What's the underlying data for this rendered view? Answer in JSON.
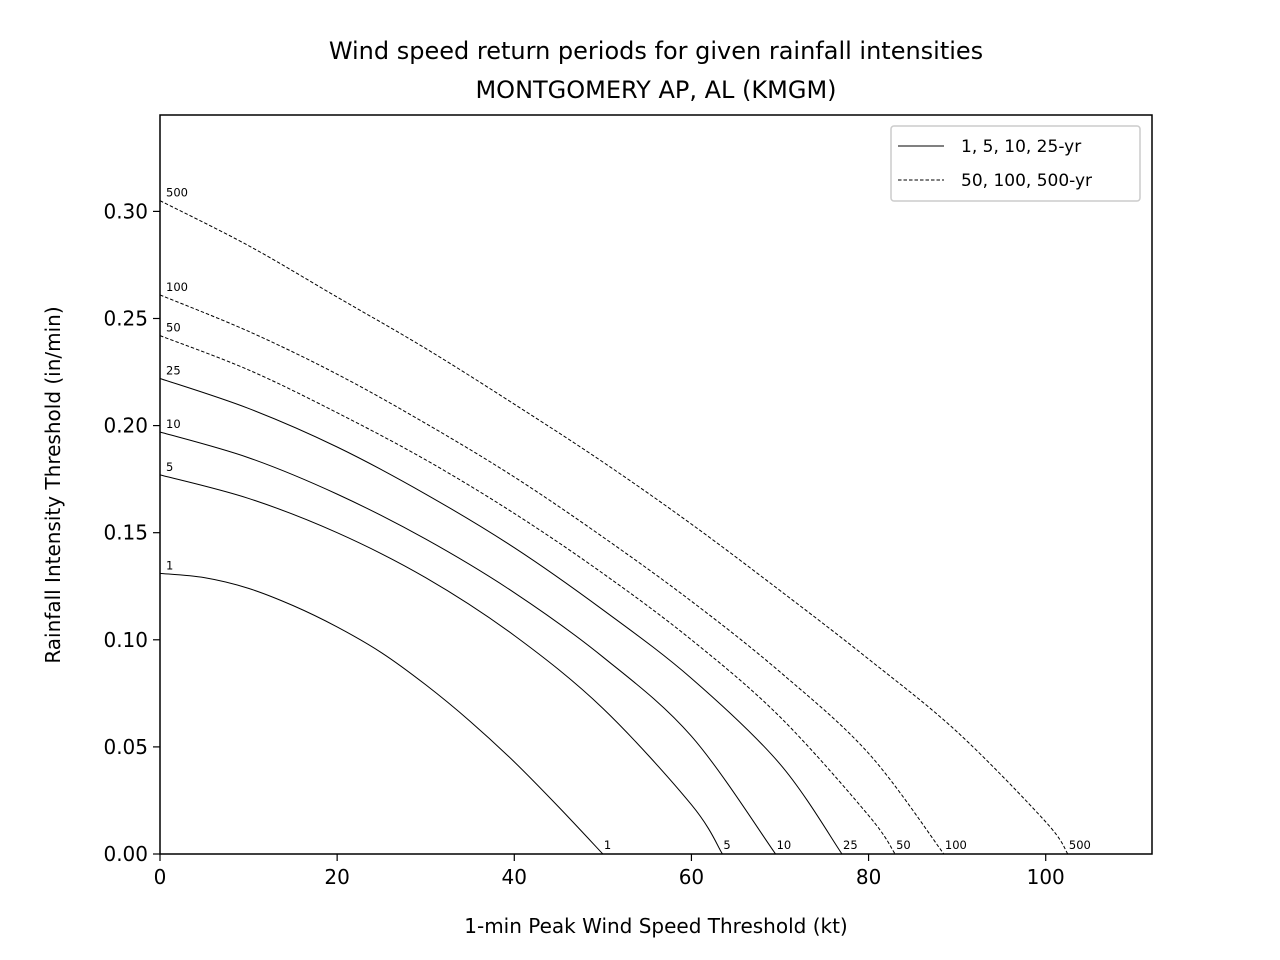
{
  "chart_data": {
    "type": "line",
    "title": "Wind speed return periods for given rainfall intensities",
    "subtitle": "MONTGOMERY AP, AL (KMGM)",
    "xlabel": "1-min Peak Wind Speed Threshold (kt)",
    "ylabel": "Rainfall Intensity Threshold (in/min)",
    "xlim": [
      0,
      112
    ],
    "ylim": [
      0,
      0.345
    ],
    "xticks": [
      0,
      20,
      40,
      60,
      80,
      100
    ],
    "yticks": [
      0.0,
      0.05,
      0.1,
      0.15,
      0.2,
      0.25,
      0.3
    ],
    "xtick_labels": [
      "0",
      "20",
      "40",
      "60",
      "80",
      "100"
    ],
    "ytick_labels": [
      "0.00",
      "0.05",
      "0.10",
      "0.15",
      "0.20",
      "0.25",
      "0.30"
    ],
    "grid": false,
    "legend": {
      "placement": "top-right",
      "entries": [
        {
          "label": "1, 5, 10, 25-yr",
          "style": "solid"
        },
        {
          "label": "50, 100, 500-yr",
          "style": "dashed"
        }
      ]
    },
    "series": [
      {
        "label": "1",
        "style": "solid",
        "points": [
          [
            0,
            0.131
          ],
          [
            5,
            0.129
          ],
          [
            10,
            0.124
          ],
          [
            15,
            0.116
          ],
          [
            20,
            0.106
          ],
          [
            25,
            0.094
          ],
          [
            30,
            0.079
          ],
          [
            35,
            0.062
          ],
          [
            40,
            0.043
          ],
          [
            45,
            0.022
          ],
          [
            50,
            0.0
          ]
        ]
      },
      {
        "label": "5",
        "style": "solid",
        "points": [
          [
            0,
            0.177
          ],
          [
            10,
            0.166
          ],
          [
            20,
            0.15
          ],
          [
            30,
            0.129
          ],
          [
            40,
            0.102
          ],
          [
            50,
            0.068
          ],
          [
            60,
            0.023
          ],
          [
            63.5,
            0.0
          ]
        ]
      },
      {
        "label": "10",
        "style": "solid",
        "points": [
          [
            0,
            0.197
          ],
          [
            10,
            0.185
          ],
          [
            20,
            0.168
          ],
          [
            30,
            0.147
          ],
          [
            40,
            0.122
          ],
          [
            50,
            0.092
          ],
          [
            60,
            0.055
          ],
          [
            69.5,
            0.0
          ]
        ]
      },
      {
        "label": "25",
        "style": "solid",
        "points": [
          [
            0,
            0.222
          ],
          [
            10,
            0.208
          ],
          [
            20,
            0.19
          ],
          [
            30,
            0.168
          ],
          [
            40,
            0.143
          ],
          [
            50,
            0.114
          ],
          [
            60,
            0.082
          ],
          [
            70,
            0.042
          ],
          [
            77,
            0.0
          ]
        ]
      },
      {
        "label": "50",
        "style": "dashed",
        "points": [
          [
            0,
            0.242
          ],
          [
            10,
            0.226
          ],
          [
            20,
            0.206
          ],
          [
            30,
            0.184
          ],
          [
            40,
            0.159
          ],
          [
            50,
            0.131
          ],
          [
            60,
            0.1
          ],
          [
            70,
            0.064
          ],
          [
            80,
            0.018
          ],
          [
            83,
            0.0
          ]
        ]
      },
      {
        "label": "100",
        "style": "dashed",
        "points": [
          [
            0,
            0.261
          ],
          [
            10,
            0.244
          ],
          [
            20,
            0.224
          ],
          [
            30,
            0.201
          ],
          [
            40,
            0.176
          ],
          [
            50,
            0.148
          ],
          [
            60,
            0.118
          ],
          [
            70,
            0.085
          ],
          [
            80,
            0.047
          ],
          [
            88.5,
            0.0
          ]
        ]
      },
      {
        "label": "500",
        "style": "dashed",
        "points": [
          [
            0,
            0.305
          ],
          [
            10,
            0.284
          ],
          [
            20,
            0.26
          ],
          [
            30,
            0.236
          ],
          [
            40,
            0.21
          ],
          [
            50,
            0.183
          ],
          [
            60,
            0.154
          ],
          [
            70,
            0.123
          ],
          [
            80,
            0.091
          ],
          [
            90,
            0.057
          ],
          [
            100,
            0.015
          ],
          [
            102.5,
            0.0
          ]
        ]
      }
    ]
  }
}
